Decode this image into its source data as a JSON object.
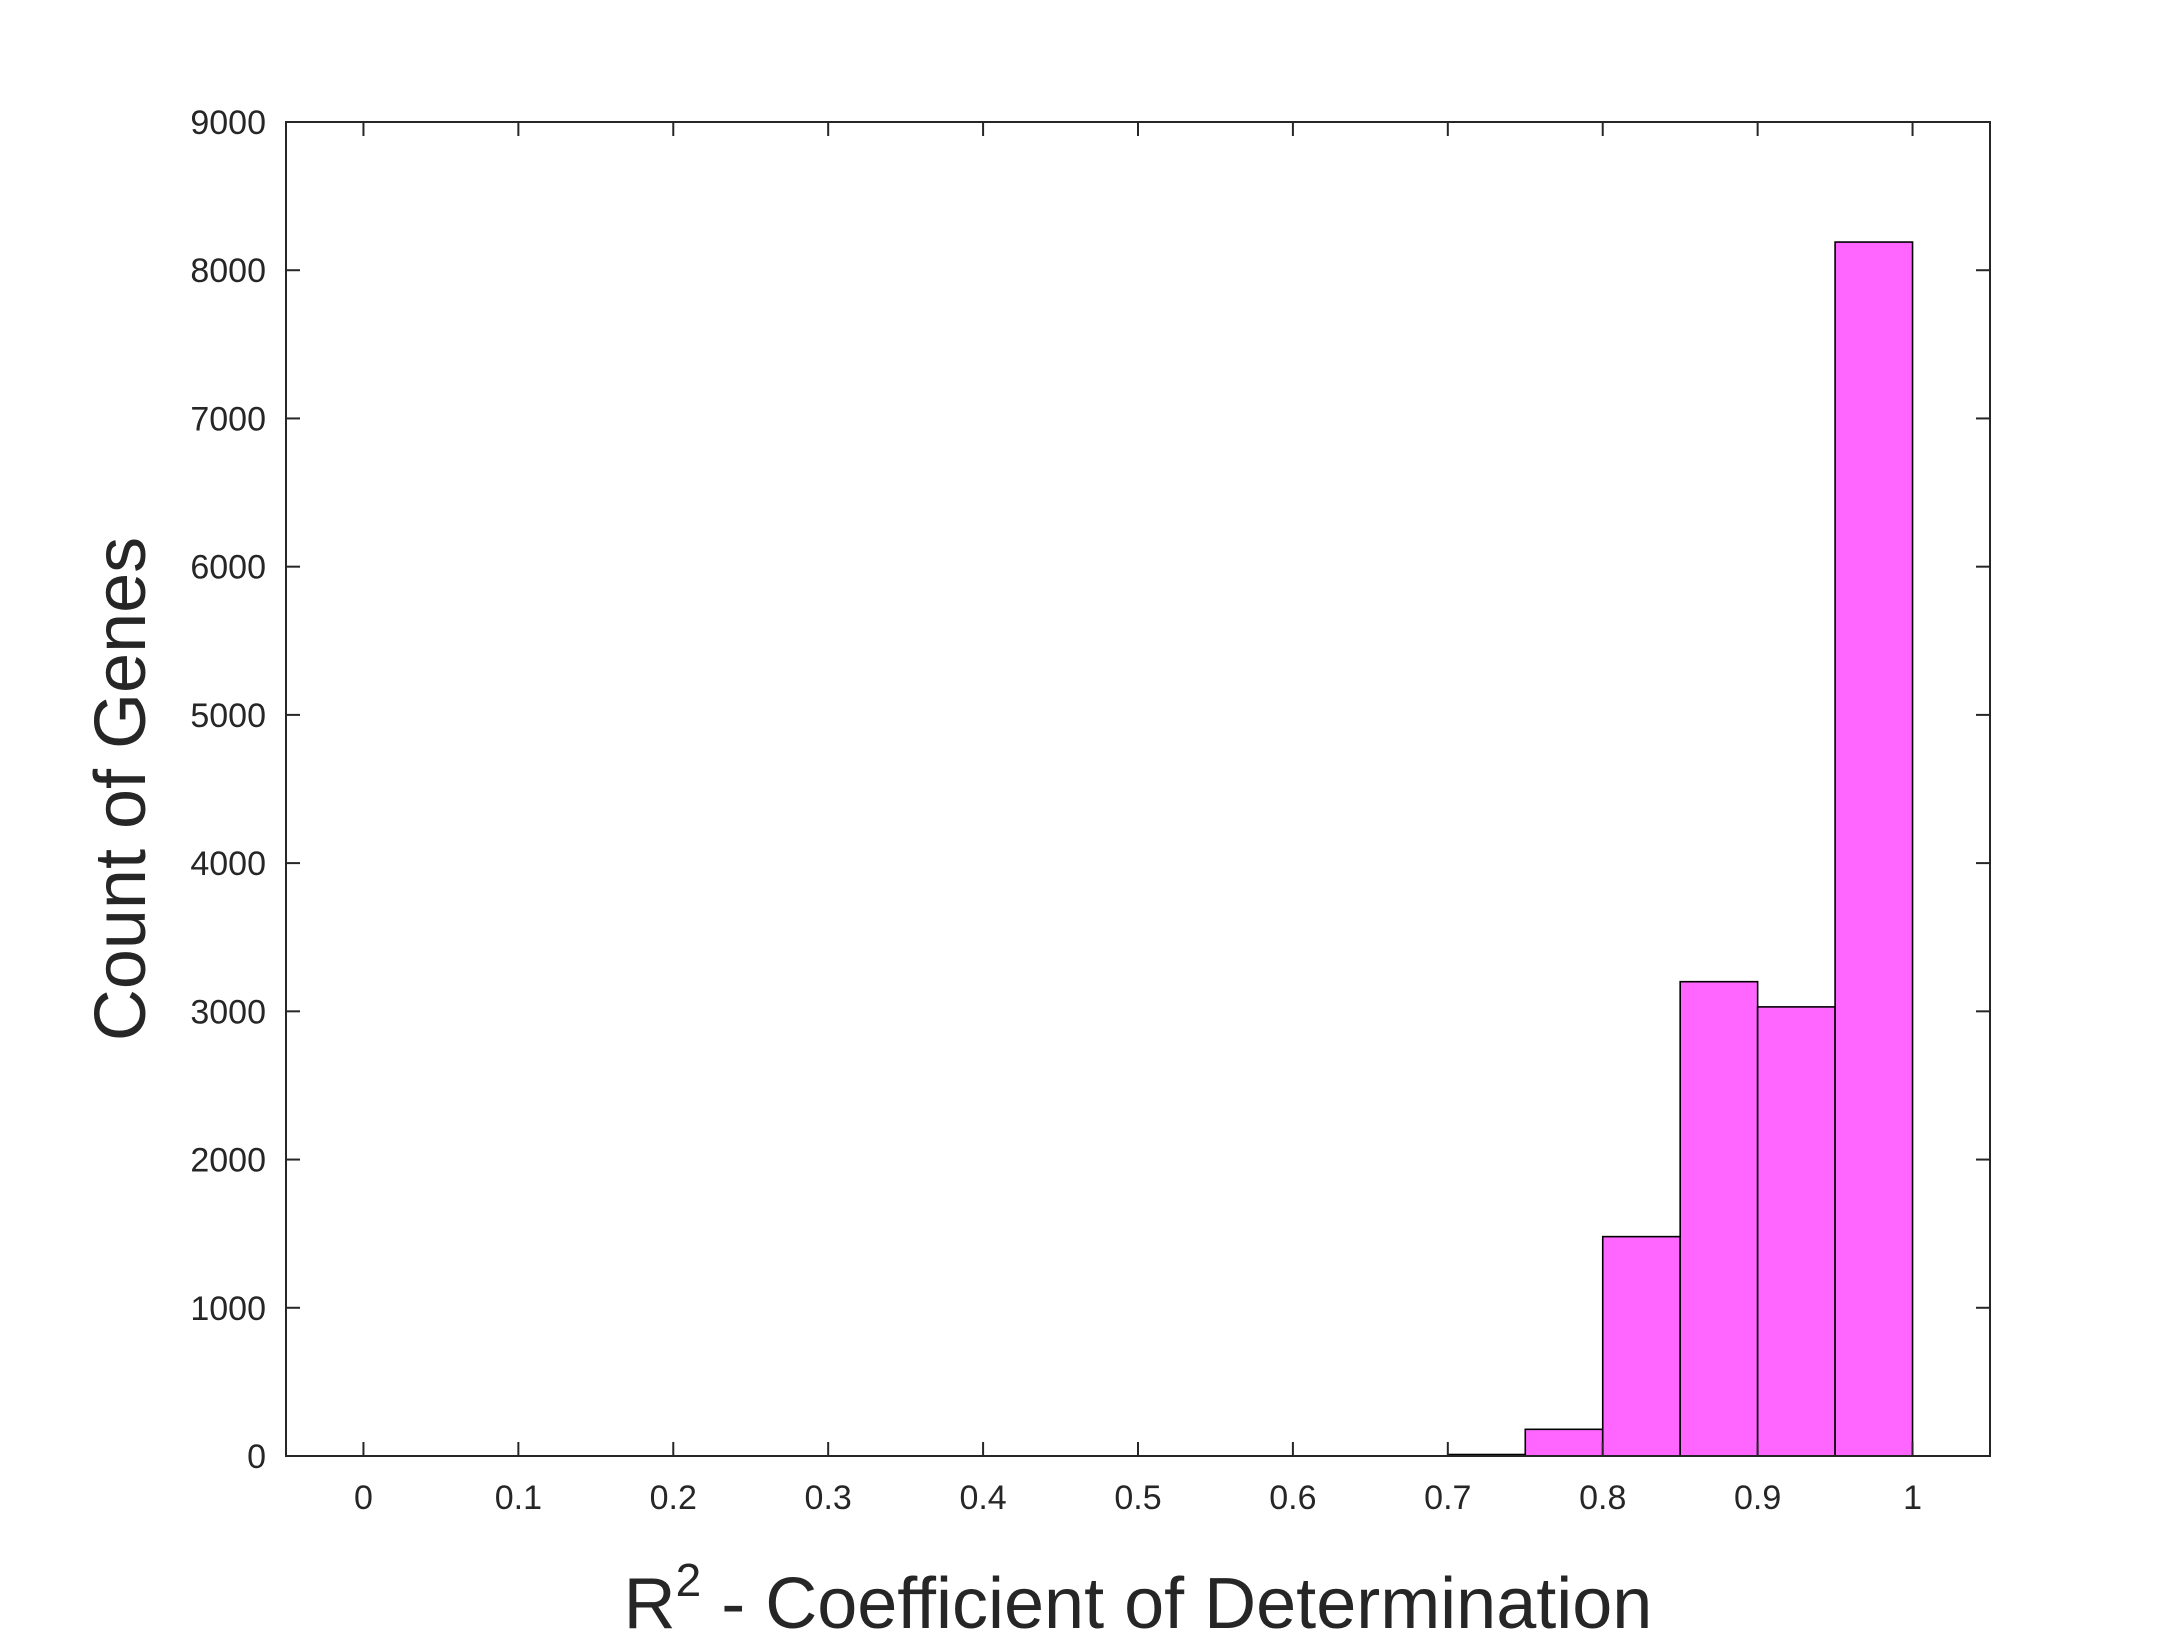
{
  "chart_data": {
    "type": "bar",
    "subtype": "histogram",
    "title": "",
    "xlabel": {
      "base": "R",
      "superscript": "2",
      "rest": " - Coefficient of Determination"
    },
    "ylabel": "Count of Genes",
    "xlim": [
      -0.05,
      1.05
    ],
    "ylim": [
      0,
      9000
    ],
    "xticks": [
      0,
      0.1,
      0.2,
      0.3,
      0.4,
      0.5,
      0.6,
      0.7,
      0.8,
      0.9,
      1
    ],
    "xtick_labels": [
      "0",
      "0.1",
      "0.2",
      "0.3",
      "0.4",
      "0.5",
      "0.6",
      "0.7",
      "0.8",
      "0.9",
      "1"
    ],
    "yticks": [
      0,
      1000,
      2000,
      3000,
      4000,
      5000,
      6000,
      7000,
      8000,
      9000
    ],
    "ytick_labels": [
      "0",
      "1000",
      "2000",
      "3000",
      "4000",
      "5000",
      "6000",
      "7000",
      "8000",
      "9000"
    ],
    "grid": false,
    "bar_color": "#FF66FF",
    "edge_color": "#000000",
    "bins": [
      {
        "x0": 0.7,
        "x1": 0.75,
        "count": 10
      },
      {
        "x0": 0.75,
        "x1": 0.8,
        "count": 180
      },
      {
        "x0": 0.8,
        "x1": 0.85,
        "count": 1480
      },
      {
        "x0": 0.85,
        "x1": 0.9,
        "count": 3200
      },
      {
        "x0": 0.9,
        "x1": 0.95,
        "count": 3030
      },
      {
        "x0": 0.95,
        "x1": 1.0,
        "count": 8190
      }
    ]
  }
}
